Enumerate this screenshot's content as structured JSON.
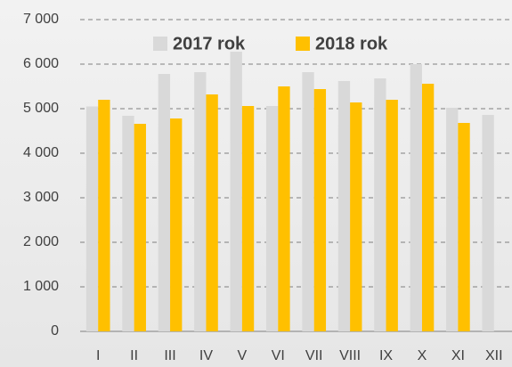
{
  "chart_data": {
    "type": "bar",
    "categories": [
      "I",
      "II",
      "III",
      "IV",
      "V",
      "VI",
      "VII",
      "VIII",
      "IX",
      "X",
      "XI",
      "XII"
    ],
    "series": [
      {
        "name": "2017 rok",
        "color": "#d9d9d9",
        "values": [
          5050,
          4840,
          5780,
          5820,
          6280,
          5060,
          5820,
          5620,
          5680,
          6000,
          5020,
          4860
        ]
      },
      {
        "name": "2018 rok",
        "color": "#ffc000",
        "values": [
          5200,
          4660,
          4780,
          5320,
          5060,
          5500,
          5440,
          5140,
          5200,
          5560,
          4680,
          null
        ]
      }
    ],
    "ylim": [
      0,
      7000
    ],
    "yticks": [
      0,
      {
        "value": 1000,
        "label": "1 000"
      },
      {
        "value": 2000,
        "label": "2 000"
      },
      {
        "value": 3000,
        "label": "3 000"
      },
      {
        "value": 4000,
        "label": "4 000"
      },
      {
        "value": 5000,
        "label": "5 000"
      },
      {
        "value": 6000,
        "label": "6 000"
      },
      {
        "value": 7000,
        "label": "7 000"
      }
    ],
    "grid": true,
    "legend": "top"
  }
}
